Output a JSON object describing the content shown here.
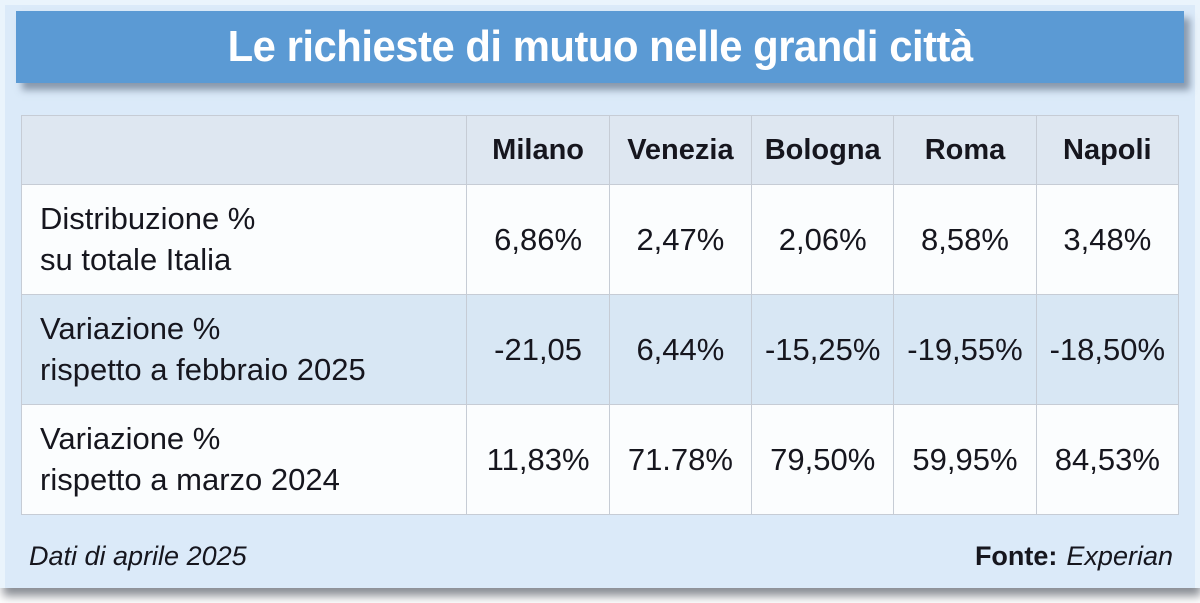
{
  "title": "Le richieste di mutuo nelle grandi città",
  "colors": {
    "title_bar": "#5b9ad4",
    "panel_background": "#dbeaf9",
    "header_row": "#dee7f1",
    "striped_row": "#d8e7f4",
    "grid_border": "#c6ccd5",
    "title_text": "#ffffff",
    "body_text": "#16161e"
  },
  "table": {
    "columns": [
      "Milano",
      "Venezia",
      "Bologna",
      "Roma",
      "Napoli"
    ],
    "rows": [
      {
        "label_line1": "Distribuzione %",
        "label_line2": "su totale Italia",
        "values": [
          "6,86%",
          "2,47%",
          "2,06%",
          "8,58%",
          "3,48%"
        ]
      },
      {
        "label_line1": "Variazione %",
        "label_line2": "rispetto a febbraio 2025",
        "values": [
          "-21,05",
          "6,44%",
          "-15,25%",
          "-19,55%",
          "-18,50%"
        ]
      },
      {
        "label_line1": "Variazione %",
        "label_line2": "rispetto a marzo 2024",
        "values": [
          "11,83%",
          "71.78%",
          "79,50%",
          "59,95%",
          "84,53%"
        ]
      }
    ]
  },
  "footer": {
    "note": "Dati di aprile 2025",
    "source_label": "Fonte:",
    "source_value": "Experian"
  },
  "chart_data": {
    "type": "table",
    "title": "Le richieste di mutuo nelle grandi città",
    "columns": [
      "Milano",
      "Venezia",
      "Bologna",
      "Roma",
      "Napoli"
    ],
    "row_headers": [
      "Distribuzione % su totale Italia",
      "Variazione % rispetto a febbraio 2025",
      "Variazione % rispetto a marzo 2024"
    ],
    "cells": [
      [
        "6,86%",
        "2,47%",
        "2,06%",
        "8,58%",
        "3,48%"
      ],
      [
        "-21,05",
        "6,44%",
        "-15,25%",
        "-19,55%",
        "-18,50%"
      ],
      [
        "11,83%",
        "71.78%",
        "79,50%",
        "59,95%",
        "84,53%"
      ]
    ],
    "note": "Dati di aprile 2025",
    "source": "Fonte: Experian"
  }
}
